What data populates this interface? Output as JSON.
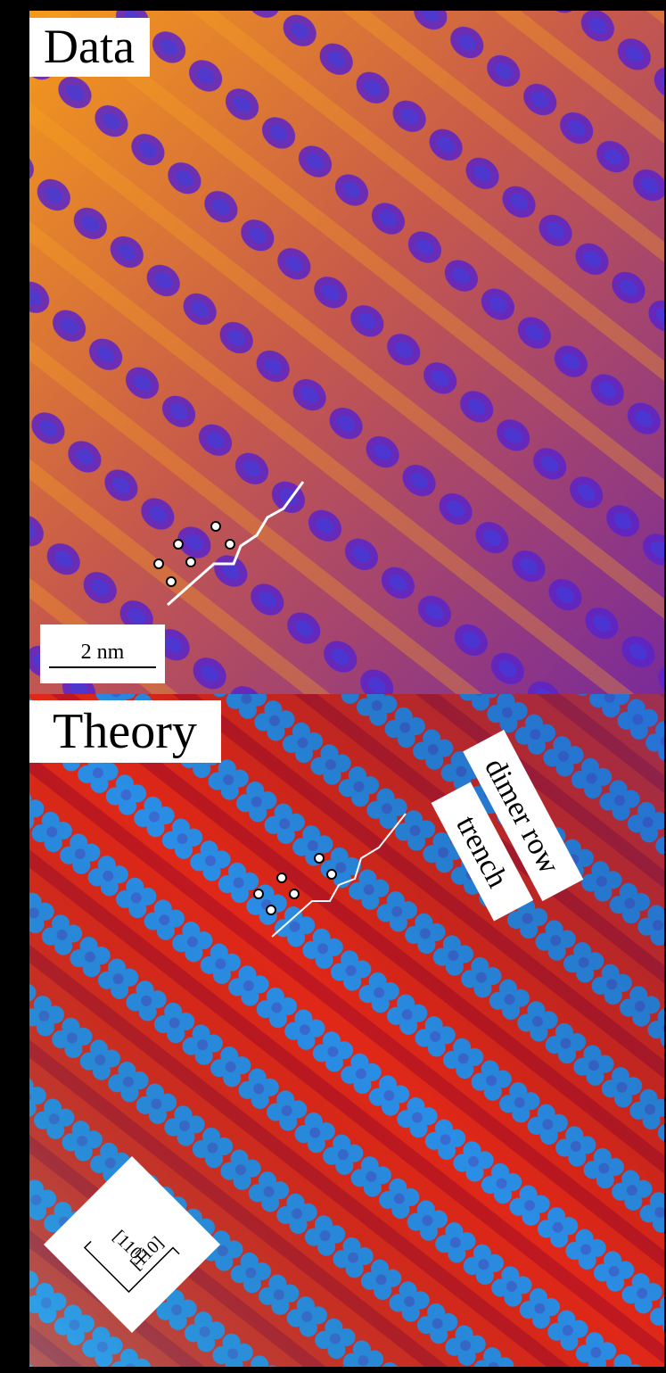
{
  "panels": [
    {
      "title": "Data",
      "scale_bar": "2 nm"
    },
    {
      "title": "Theory",
      "labels": [
        "dimer row",
        "trench"
      ],
      "directions": [
        "[110]",
        "[1̅10]"
      ]
    }
  ]
}
